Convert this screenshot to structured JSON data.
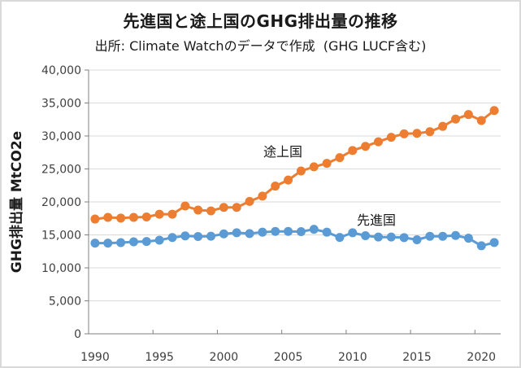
{
  "chart_data": {
    "type": "line",
    "title": "先進国と途上国のGHG排出量の推移",
    "subtitle": "出所: Climate Watchのデータで作成  (GHG LUCF含む)",
    "xlabel": "",
    "ylabel": "GHG排出量 MtCO2e",
    "ylim": [
      0,
      40000
    ],
    "yticks": [
      0,
      5000,
      10000,
      15000,
      20000,
      25000,
      30000,
      35000,
      40000
    ],
    "ytick_labels": [
      "0",
      "5,000",
      "10,000",
      "15,000",
      "20,000",
      "25,000",
      "30,000",
      "35,000",
      "40,000"
    ],
    "xtick_labels": [
      "1990",
      "1995",
      "2000",
      "2005",
      "2010",
      "2015",
      "2020"
    ],
    "grid": "horizontal",
    "legend": "inline-labels",
    "x": [
      1990,
      1991,
      1992,
      1993,
      1994,
      1995,
      1996,
      1997,
      1998,
      1999,
      2000,
      2001,
      2002,
      2003,
      2004,
      2005,
      2006,
      2007,
      2008,
      2009,
      2010,
      2011,
      2012,
      2013,
      2014,
      2015,
      2016,
      2017,
      2018,
      2019,
      2020,
      2021
    ],
    "series": [
      {
        "name": "途上国",
        "color": "#ED7D31",
        "values": [
          17400,
          17650,
          17550,
          17650,
          17720,
          18140,
          18140,
          19380,
          18760,
          18640,
          19170,
          19170,
          20080,
          20880,
          22400,
          23320,
          24690,
          25320,
          25850,
          26710,
          27800,
          28430,
          29120,
          29800,
          30330,
          30400,
          30650,
          31460,
          32560,
          33250,
          32350,
          33860
        ]
      },
      {
        "name": "先進国",
        "color": "#5B9BD5",
        "values": [
          13750,
          13750,
          13830,
          13950,
          14000,
          14200,
          14600,
          14850,
          14750,
          14800,
          15150,
          15320,
          15200,
          15410,
          15530,
          15530,
          15490,
          15850,
          15410,
          14620,
          15320,
          14880,
          14670,
          14670,
          14590,
          14260,
          14790,
          14790,
          14910,
          14500,
          13350,
          13840
        ]
      }
    ]
  }
}
